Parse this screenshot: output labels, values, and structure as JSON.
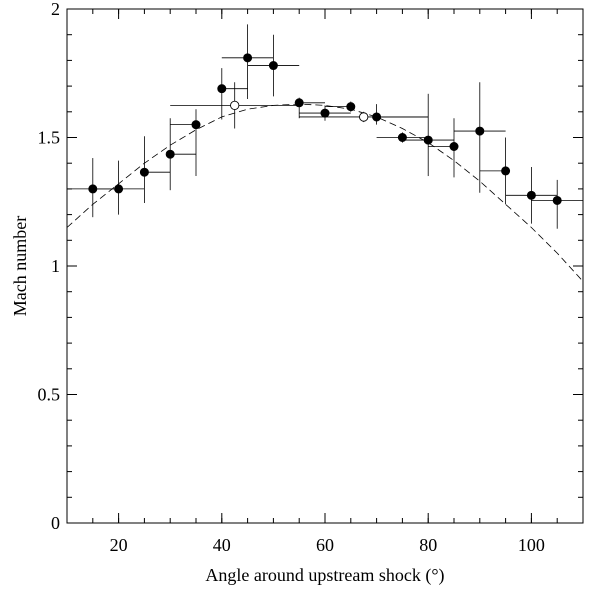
{
  "chart_data": {
    "type": "scatter",
    "xlabel": "Angle around upstream shock (°)",
    "ylabel": "Mach number",
    "xlim": [
      10,
      110
    ],
    "ylim": [
      0,
      2
    ],
    "x_ticks": [
      20,
      40,
      60,
      80,
      100
    ],
    "x_tick_labels": [
      "20",
      "40",
      "60",
      "80",
      "100"
    ],
    "y_ticks": [
      0,
      0.5,
      1,
      1.5,
      2
    ],
    "y_tick_labels": [
      "0",
      "0.5",
      "1",
      "1.5",
      "2"
    ],
    "x_minor_step": 5,
    "y_minor_step": 0.1,
    "grid": false,
    "series": [
      {
        "marker": "filled-circle",
        "points": [
          {
            "x": 15,
            "y": 1.3,
            "xerr": [
              5,
              5
            ],
            "yerr": [
              0.11,
              0.12
            ]
          },
          {
            "x": 20,
            "y": 1.3,
            "xerr": [
              5,
              5
            ],
            "yerr": [
              0.1,
              0.11
            ]
          },
          {
            "x": 25,
            "y": 1.365,
            "xerr": [
              0,
              5
            ],
            "yerr": [
              0.12,
              0.14
            ]
          },
          {
            "x": 30,
            "y": 1.435,
            "xerr": [
              0,
              5
            ],
            "yerr": [
              0.14,
              0.14
            ]
          },
          {
            "x": 35,
            "y": 1.55,
            "xerr": [
              5,
              0
            ],
            "yerr": [
              0.2,
              0.06
            ]
          },
          {
            "x": 40,
            "y": 1.69,
            "xerr": [
              0,
              5
            ],
            "yerr": [
              0.12,
              0.08
            ]
          },
          {
            "x": 45,
            "y": 1.81,
            "xerr": [
              5,
              5
            ],
            "yerr": [
              0.16,
              0.13
            ]
          },
          {
            "x": 50,
            "y": 1.78,
            "xerr": [
              5,
              5
            ],
            "yerr": [
              0.12,
              0.12
            ]
          },
          {
            "x": 55,
            "y": 1.635,
            "xerr": [
              0,
              5
            ],
            "yerr": [
              0.06,
              0.02
            ]
          },
          {
            "x": 60,
            "y": 1.595,
            "xerr": [
              5,
              5
            ],
            "yerr": [
              0.03,
              0.03
            ]
          },
          {
            "x": 65,
            "y": 1.62,
            "xerr": [
              5,
              0
            ],
            "yerr": [
              0.02,
              0.02
            ]
          },
          {
            "x": 70,
            "y": 1.58,
            "xerr": [
              0,
              10
            ],
            "yerr": [
              0.03,
              0.05
            ]
          },
          {
            "x": 75,
            "y": 1.5,
            "xerr": [
              5,
              5
            ],
            "yerr": [
              0.02,
              0.02
            ]
          },
          {
            "x": 80,
            "y": 1.49,
            "xerr": [
              5,
              5
            ],
            "yerr": [
              0.14,
              0.18
            ]
          },
          {
            "x": 85,
            "y": 1.465,
            "xerr": [
              5,
              0
            ],
            "yerr": [
              0.12,
              0.11
            ]
          },
          {
            "x": 90,
            "y": 1.525,
            "xerr": [
              5,
              5
            ],
            "yerr": [
              0.24,
              0.19
            ]
          },
          {
            "x": 95,
            "y": 1.37,
            "xerr": [
              5,
              0
            ],
            "yerr": [
              0.13,
              0.13
            ]
          },
          {
            "x": 100,
            "y": 1.275,
            "xerr": [
              5,
              5
            ],
            "yerr": [
              0.11,
              0.11
            ]
          },
          {
            "x": 105,
            "y": 1.255,
            "xerr": [
              5,
              5
            ],
            "yerr": [
              0.11,
              0.08
            ]
          }
        ]
      },
      {
        "marker": "open-circle",
        "points": [
          {
            "x": 42.5,
            "y": 1.625,
            "xerr": [
              12.5,
              12.5
            ],
            "yerr": [
              0.09,
              0.09
            ]
          },
          {
            "x": 67.5,
            "y": 1.58,
            "xerr": [
              12.5,
              12.5
            ],
            "yerr": [
              0.02,
              0.02
            ]
          }
        ]
      },
      {
        "marker": "dashed-line",
        "x": [
          10,
          15,
          20,
          25,
          30,
          35,
          40,
          45,
          50,
          55,
          60,
          65,
          70,
          75,
          80,
          85,
          90,
          95,
          100,
          105,
          110
        ],
        "y": [
          1.15,
          1.24,
          1.32,
          1.4,
          1.47,
          1.53,
          1.58,
          1.61,
          1.625,
          1.63,
          1.625,
          1.61,
          1.58,
          1.535,
          1.48,
          1.41,
          1.33,
          1.24,
          1.15,
          1.05,
          0.94
        ]
      }
    ]
  }
}
